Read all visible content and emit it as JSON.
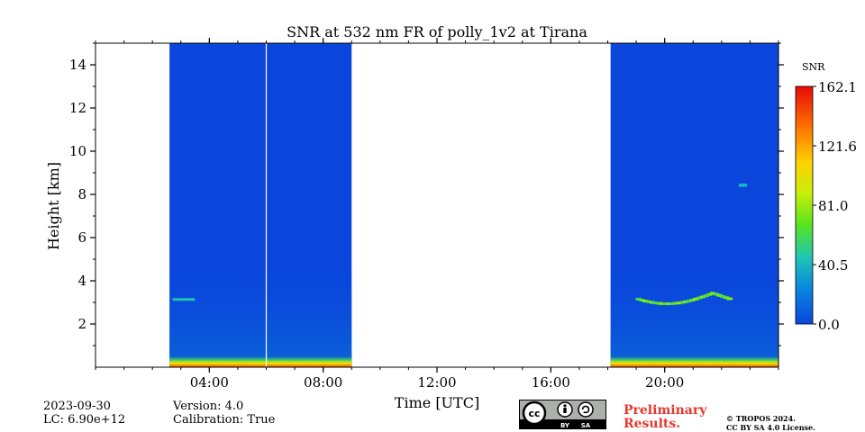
{
  "chart_data": {
    "type": "heatmap",
    "title": "SNR at 532 nm FR of polly_1v2 at Tirana",
    "xlabel": "Time [UTC]",
    "ylabel": "Height [km]",
    "xlim_hours": [
      0,
      24
    ],
    "ylim_km": [
      0,
      15
    ],
    "x_ticks": [
      {
        "hour": 4,
        "label": "04:00"
      },
      {
        "hour": 8,
        "label": "08:00"
      },
      {
        "hour": 12,
        "label": "12:00"
      },
      {
        "hour": 16,
        "label": "16:00"
      },
      {
        "hour": 20,
        "label": "20:00"
      }
    ],
    "y_ticks": [
      {
        "value": 2,
        "label": "2"
      },
      {
        "value": 4,
        "label": "4"
      },
      {
        "value": 6,
        "label": "6"
      },
      {
        "value": 8,
        "label": "8"
      },
      {
        "value": 10,
        "label": "10"
      },
      {
        "value": 12,
        "label": "12"
      },
      {
        "value": 14,
        "label": "14"
      }
    ],
    "colorbar": {
      "label": "SNR",
      "range": [
        0.0,
        162.1
      ],
      "tick_labels": [
        "0.0",
        "40.5",
        "81.0",
        "121.6",
        "162.1"
      ],
      "tick_values": [
        0.0,
        40.5,
        81.0,
        121.6,
        162.1
      ]
    },
    "data_periods_hours": [
      [
        2.6,
        9.0
      ],
      [
        18.1,
        24.0
      ]
    ],
    "gaps_hours": [
      6.0
    ],
    "features": [
      {
        "name": "near-surface layer",
        "time_hours": [
          2.6,
          9.0
        ],
        "height_km": [
          0.0,
          0.5
        ],
        "snr": 110
      },
      {
        "name": "near-surface layer",
        "time_hours": [
          18.1,
          24.0
        ],
        "height_km": [
          0.0,
          0.5
        ],
        "snr": 115
      },
      {
        "name": "cloud",
        "time_hours": [
          2.7,
          3.5
        ],
        "height_km": [
          3.1,
          3.2
        ],
        "snr": 45
      },
      {
        "name": "cloud",
        "time_hours": [
          19.1,
          22.3
        ],
        "height_km": [
          2.8,
          3.7
        ],
        "snr": 75
      },
      {
        "name": "cloud",
        "time_hours": [
          22.6,
          22.9
        ],
        "height_km": [
          8.35,
          8.5
        ],
        "snr": 40
      }
    ]
  },
  "footer": {
    "date": "2023-09-30",
    "lc": "LC: 6.90e+12",
    "version": "Version: 4.0",
    "calibration": "Calibration: True",
    "preliminary_line1": "Preliminary",
    "preliminary_line2": "Results.",
    "copyright_line1": "© TROPOS 2024.",
    "copyright_line2": "CC BY SA 4.0 License.",
    "license_badge": {
      "cc": "cc",
      "by": "BY",
      "sa": "SA"
    }
  }
}
